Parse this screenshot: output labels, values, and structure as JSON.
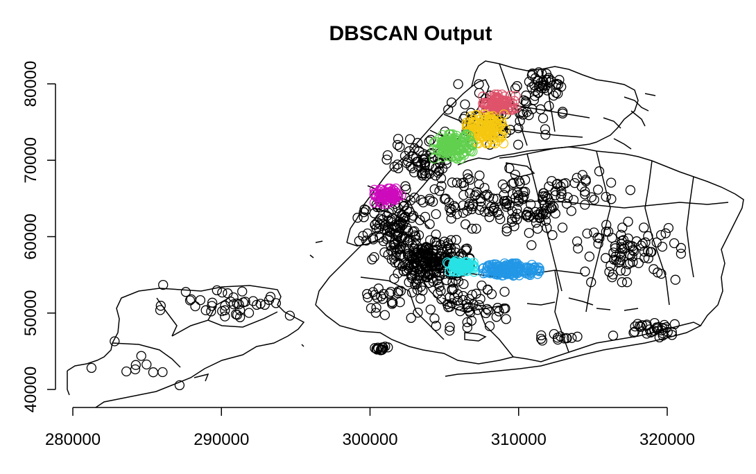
{
  "chart_data": {
    "type": "scatter",
    "title": "DBSCAN Output",
    "xlabel": "",
    "ylabel": "",
    "xlim": [
      280000,
      320000
    ],
    "ylim": [
      40000,
      80000
    ],
    "xticks": [
      "280000",
      "290000",
      "300000",
      "310000",
      "320000"
    ],
    "yticks": [
      "40000",
      "50000",
      "60000",
      "70000",
      "80000"
    ],
    "grid": false,
    "legend": "none",
    "marker": "open-circle",
    "clusters": [
      {
        "color": "#df536b",
        "center": [
          308700,
          77400
        ],
        "spread": [
          1100,
          1200
        ],
        "n": 90
      },
      {
        "color": "#f5c710",
        "center": [
          307800,
          74100
        ],
        "spread": [
          1300,
          1900
        ],
        "n": 140
      },
      {
        "color": "#61d04f",
        "center": [
          305600,
          71800
        ],
        "spread": [
          1300,
          1600
        ],
        "n": 130
      },
      {
        "color": "#cd0bbc",
        "center": [
          301200,
          65300
        ],
        "spread": [
          900,
          1000
        ],
        "n": 80
      },
      {
        "color": "#28e2e5",
        "center": [
          306100,
          56100
        ],
        "spread": [
          900,
          700
        ],
        "n": 90
      },
      {
        "color": "#2297e6",
        "center": [
          309500,
          55700
        ],
        "spread": [
          1900,
          800
        ],
        "n": 160
      }
    ],
    "noise_regions": [
      {
        "center": [
          301800,
          60500
        ],
        "spread": [
          2000,
          3500
        ],
        "n": 130
      },
      {
        "center": [
          304200,
          56800
        ],
        "spread": [
          1900,
          2300
        ],
        "n": 190
      },
      {
        "center": [
          307000,
          65000
        ],
        "spread": [
          3500,
          3000
        ],
        "n": 80
      },
      {
        "center": [
          310500,
          63500
        ],
        "spread": [
          3000,
          3500
        ],
        "n": 70
      },
      {
        "center": [
          309000,
          76000
        ],
        "spread": [
          3000,
          3000
        ],
        "n": 70
      },
      {
        "center": [
          311800,
          80000
        ],
        "spread": [
          1000,
          1200
        ],
        "n": 35
      },
      {
        "center": [
          303500,
          69500
        ],
        "spread": [
          1800,
          2500
        ],
        "n": 60
      },
      {
        "center": [
          306000,
          51000
        ],
        "spread": [
          2500,
          2500
        ],
        "n": 60
      },
      {
        "center": [
          301500,
          52000
        ],
        "spread": [
          2000,
          2000
        ],
        "n": 30
      },
      {
        "center": [
          317500,
          58000
        ],
        "spread": [
          2700,
          3000
        ],
        "n": 80
      },
      {
        "center": [
          319000,
          48000
        ],
        "spread": [
          2000,
          900
        ],
        "n": 30
      },
      {
        "center": [
          314000,
          66000
        ],
        "spread": [
          3500,
          2500
        ],
        "n": 30
      },
      {
        "center": [
          290500,
          51500
        ],
        "spread": [
          3500,
          1700
        ],
        "n": 40
      },
      {
        "center": [
          284500,
          43000
        ],
        "spread": [
          2500,
          2500
        ],
        "n": 10
      },
      {
        "center": [
          300700,
          45400
        ],
        "spread": [
          400,
          200
        ],
        "n": 14
      },
      {
        "center": [
          313000,
          46700
        ],
        "spread": [
          1500,
          600
        ],
        "n": 12
      }
    ],
    "noise_color": "#000000",
    "outline_color": "#000000"
  }
}
